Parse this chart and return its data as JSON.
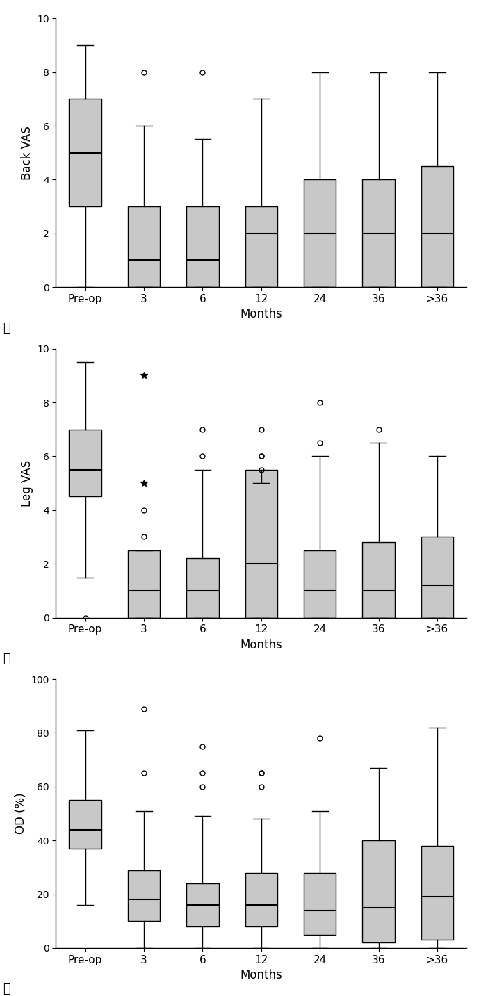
{
  "categories": [
    "Pre-op",
    "3",
    "6",
    "12",
    "24",
    "36",
    ">36"
  ],
  "panel_labels": [
    "A",
    "B",
    "C"
  ],
  "ylabels": [
    "Back VAS",
    "Leg VAS",
    "OD (%)"
  ],
  "xlabel": "Months",
  "background_color": "#ffffff",
  "box_facecolor": "#c8c8c8",
  "box_edgecolor": "#000000",
  "whisker_color": "#000000",
  "median_color": "#000000",
  "flier_color": "#000000",
  "panels": [
    {
      "ylim": [
        0,
        10
      ],
      "yticks": [
        0,
        2,
        4,
        6,
        8,
        10
      ],
      "boxes": [
        {
          "q1": 3.0,
          "median": 5.0,
          "q3": 7.0,
          "whislo": 0.0,
          "whishi": 9.0,
          "fliers": [],
          "star_fliers": []
        },
        {
          "q1": 0.0,
          "median": 1.0,
          "q3": 3.0,
          "whislo": 0.0,
          "whishi": 6.0,
          "fliers": [
            8.0
          ],
          "star_fliers": []
        },
        {
          "q1": 0.0,
          "median": 1.0,
          "q3": 3.0,
          "whislo": 0.0,
          "whishi": 5.5,
          "fliers": [
            8.0
          ],
          "star_fliers": []
        },
        {
          "q1": 0.0,
          "median": 2.0,
          "q3": 3.0,
          "whislo": 0.0,
          "whishi": 7.0,
          "fliers": [],
          "star_fliers": []
        },
        {
          "q1": 0.0,
          "median": 2.0,
          "q3": 4.0,
          "whislo": 0.0,
          "whishi": 8.0,
          "fliers": [],
          "star_fliers": []
        },
        {
          "q1": 0.0,
          "median": 2.0,
          "q3": 4.0,
          "whislo": 0.0,
          "whishi": 8.0,
          "fliers": [],
          "star_fliers": []
        },
        {
          "q1": 0.0,
          "median": 2.0,
          "q3": 4.5,
          "whislo": 0.0,
          "whishi": 8.0,
          "fliers": [],
          "star_fliers": []
        }
      ]
    },
    {
      "ylim": [
        0,
        10
      ],
      "yticks": [
        0,
        2,
        4,
        6,
        8,
        10
      ],
      "boxes": [
        {
          "q1": 4.5,
          "median": 5.5,
          "q3": 7.0,
          "whislo": 1.5,
          "whishi": 9.5,
          "fliers": [
            0.0
          ],
          "star_fliers": []
        },
        {
          "q1": 0.0,
          "median": 1.0,
          "q3": 2.5,
          "whislo": 0.0,
          "whishi": 2.5,
          "fliers": [
            3.0,
            4.0
          ],
          "star_fliers": [
            5.0,
            9.0
          ]
        },
        {
          "q1": 0.0,
          "median": 1.0,
          "q3": 2.2,
          "whislo": 0.0,
          "whishi": 5.5,
          "fliers": [
            7.0,
            6.0
          ],
          "star_fliers": []
        },
        {
          "q1": 0.0,
          "median": 2.0,
          "q3": 5.5,
          "whislo": 0.0,
          "whishi": 5.0,
          "fliers": [
            7.0,
            6.0,
            6.0,
            5.5
          ],
          "star_fliers": []
        },
        {
          "q1": 0.0,
          "median": 1.0,
          "q3": 2.5,
          "whislo": 0.0,
          "whishi": 6.0,
          "fliers": [
            8.0,
            6.5
          ],
          "star_fliers": []
        },
        {
          "q1": 0.0,
          "median": 1.0,
          "q3": 2.8,
          "whislo": 0.0,
          "whishi": 6.5,
          "fliers": [
            7.0
          ],
          "star_fliers": []
        },
        {
          "q1": 0.0,
          "median": 1.2,
          "q3": 3.0,
          "whislo": 0.0,
          "whishi": 6.0,
          "fliers": [],
          "star_fliers": []
        }
      ]
    },
    {
      "ylim": [
        0,
        100
      ],
      "yticks": [
        0,
        20,
        40,
        60,
        80,
        100
      ],
      "boxes": [
        {
          "q1": 37.0,
          "median": 44.0,
          "q3": 55.0,
          "whislo": 16.0,
          "whishi": 81.0,
          "fliers": [],
          "star_fliers": []
        },
        {
          "q1": 10.0,
          "median": 18.0,
          "q3": 29.0,
          "whislo": 0.0,
          "whishi": 51.0,
          "fliers": [
            65.0,
            89.0
          ],
          "star_fliers": []
        },
        {
          "q1": 8.0,
          "median": 16.0,
          "q3": 24.0,
          "whislo": 0.0,
          "whishi": 49.0,
          "fliers": [
            60.0,
            65.0,
            75.0
          ],
          "star_fliers": []
        },
        {
          "q1": 8.0,
          "median": 16.0,
          "q3": 28.0,
          "whislo": 0.0,
          "whishi": 48.0,
          "fliers": [
            60.0,
            65.0,
            65.0
          ],
          "star_fliers": []
        },
        {
          "q1": 5.0,
          "median": 14.0,
          "q3": 28.0,
          "whislo": 0.0,
          "whishi": 51.0,
          "fliers": [
            78.0
          ],
          "star_fliers": []
        },
        {
          "q1": 2.0,
          "median": 15.0,
          "q3": 40.0,
          "whislo": 0.0,
          "whishi": 67.0,
          "fliers": [],
          "star_fliers": []
        },
        {
          "q1": 3.0,
          "median": 19.0,
          "q3": 38.0,
          "whislo": 0.0,
          "whishi": 82.0,
          "fliers": [],
          "star_fliers": []
        }
      ]
    }
  ]
}
